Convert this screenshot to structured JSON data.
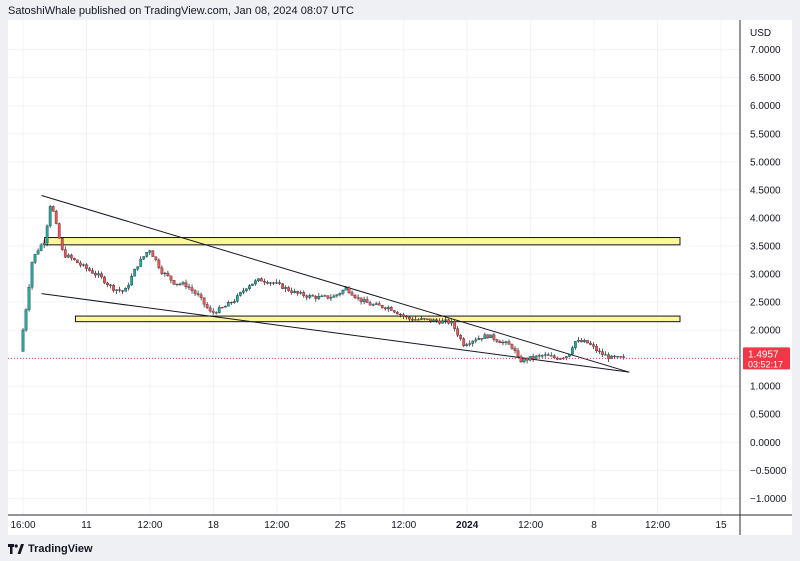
{
  "header": {
    "published_by": "SatoshiWhale published on TradingView.com, Jan 08, 2024 08:07 UTC"
  },
  "footer": {
    "logo_icon": "tradingview-logo-icon",
    "brand": "TradingView"
  },
  "colors": {
    "up": "#26a69a",
    "down": "#ef5350",
    "zone_fill": "#fff59d",
    "zone_border": "#131722",
    "price_tag": "#f23645",
    "trendline": "#131722",
    "grid": "#f0f3fa"
  },
  "chart_data": {
    "type": "candlestick",
    "currency": "USD",
    "y_axis": {
      "ticks": [
        "7.0000",
        "6.5000",
        "6.0000",
        "5.5000",
        "5.0000",
        "4.5000",
        "4.0000",
        "3.5000",
        "3.0000",
        "2.5000",
        "2.0000",
        "1.5000",
        "1.0000",
        "0.5000",
        "0.0000",
        "−0.5000",
        "−1.0000"
      ],
      "range": [
        -1.1,
        7.1
      ]
    },
    "x_axis": {
      "ticks": [
        "16:00",
        "11",
        "12:00",
        "18",
        "12:00",
        "25",
        "12:00",
        "2024",
        "12:00",
        "8",
        "12:00",
        "15"
      ],
      "bold_ticks": [
        "2024"
      ]
    },
    "last_price": {
      "value": "1.4957",
      "countdown": "03:52:17"
    },
    "price_path": [
      [
        0.0,
        1.62
      ],
      [
        0.01,
        2.4
      ],
      [
        0.02,
        3.25
      ],
      [
        0.03,
        3.45
      ],
      [
        0.04,
        3.6
      ],
      [
        0.05,
        4.3
      ],
      [
        0.06,
        3.8
      ],
      [
        0.07,
        3.35
      ],
      [
        0.08,
        3.3
      ],
      [
        0.1,
        3.15
      ],
      [
        0.13,
        2.95
      ],
      [
        0.15,
        2.75
      ],
      [
        0.17,
        2.68
      ],
      [
        0.19,
        3.15
      ],
      [
        0.21,
        3.45
      ],
      [
        0.23,
        3.05
      ],
      [
        0.25,
        2.85
      ],
      [
        0.27,
        2.8
      ],
      [
        0.29,
        2.6
      ],
      [
        0.31,
        2.3
      ],
      [
        0.33,
        2.4
      ],
      [
        0.35,
        2.55
      ],
      [
        0.37,
        2.8
      ],
      [
        0.39,
        2.9
      ],
      [
        0.41,
        2.85
      ],
      [
        0.43,
        2.75
      ],
      [
        0.45,
        2.65
      ],
      [
        0.47,
        2.6
      ],
      [
        0.49,
        2.58
      ],
      [
        0.51,
        2.6
      ],
      [
        0.53,
        2.75
      ],
      [
        0.55,
        2.55
      ],
      [
        0.57,
        2.45
      ],
      [
        0.6,
        2.4
      ],
      [
        0.63,
        2.2
      ],
      [
        0.66,
        2.18
      ],
      [
        0.7,
        2.14
      ],
      [
        0.72,
        1.75
      ],
      [
        0.74,
        1.85
      ],
      [
        0.76,
        1.9
      ],
      [
        0.78,
        1.8
      ],
      [
        0.8,
        1.7
      ],
      [
        0.81,
        1.45
      ],
      [
        0.83,
        1.5
      ],
      [
        0.85,
        1.55
      ],
      [
        0.87,
        1.5
      ],
      [
        0.89,
        1.55
      ],
      [
        0.9,
        1.8
      ],
      [
        0.92,
        1.78
      ],
      [
        0.93,
        1.7
      ],
      [
        0.94,
        1.6
      ],
      [
        0.96,
        1.5
      ],
      [
        0.98,
        1.4957
      ]
    ],
    "zones": [
      {
        "top": 3.65,
        "bottom": 3.52,
        "start": 0.04,
        "end": 1.0
      },
      {
        "top": 2.25,
        "bottom": 2.15,
        "start": 0.09,
        "end": 1.0
      }
    ],
    "trendlines": [
      {
        "x1": 0.035,
        "y1": 4.4,
        "x2": 0.86,
        "y2": 1.25
      },
      {
        "x1": 0.035,
        "y1": 2.65,
        "x2": 0.86,
        "y2": 1.25
      }
    ]
  }
}
